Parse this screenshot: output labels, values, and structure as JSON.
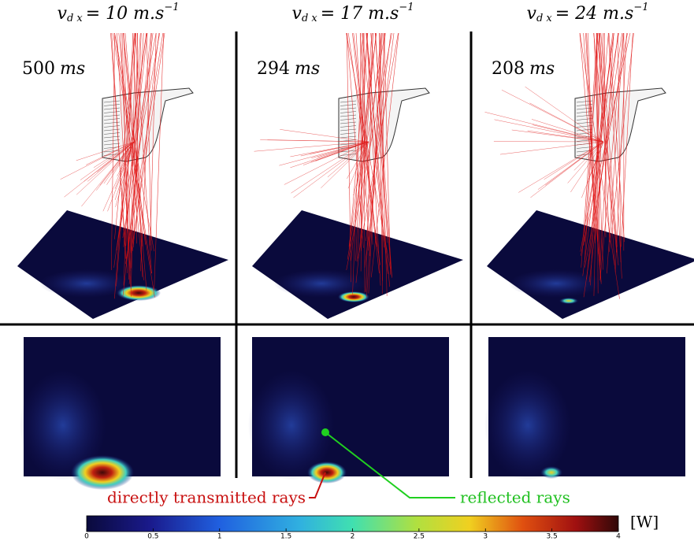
{
  "panels": [
    {
      "symbol": "v",
      "subscript": "d x",
      "equals": "= 10 m.s",
      "superscript": "−1",
      "time_value": "500",
      "time_unit": "ms"
    },
    {
      "symbol": "v",
      "subscript": "d x",
      "equals": "= 17 m.s",
      "superscript": "−1",
      "time_value": "294",
      "time_unit": "ms"
    },
    {
      "symbol": "v",
      "subscript": "d x",
      "equals": "= 24 m.s",
      "superscript": "−1",
      "time_value": "208",
      "time_unit": "ms"
    }
  ],
  "annotations": {
    "transmitted": "directly transmitted rays",
    "reflected": "reflected rays"
  },
  "colorbar": {
    "lim": [
      0,
      4
    ],
    "ticks": [
      0,
      0.5,
      1,
      1.5,
      2,
      2.5,
      3,
      3.5,
      4
    ],
    "unit": "[W]"
  }
}
